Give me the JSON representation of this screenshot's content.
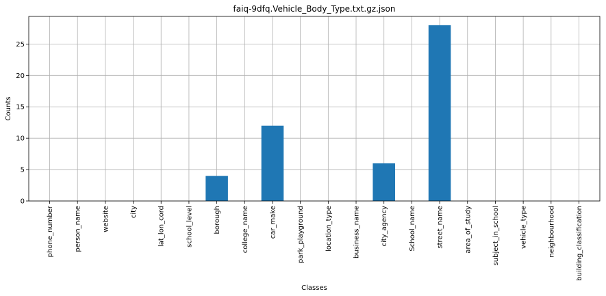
{
  "chart_data": {
    "type": "bar",
    "title": "faiq-9dfq.Vehicle_Body_Type.txt.gz.json",
    "xlabel": "Classes",
    "ylabel": "Counts",
    "categories": [
      "phone_number",
      "person_name",
      "website",
      "city",
      "lat_lon_cord",
      "school_level",
      "borough",
      "college_name",
      "car_make",
      "park_playground",
      "location_type",
      "business_name",
      "city_agency",
      "School_name",
      "street_name",
      "area_of_study",
      "subject_in_school",
      "vehicle_type",
      "neighbourhood",
      "building_classification"
    ],
    "values": [
      0,
      0,
      0,
      0,
      0,
      0,
      4,
      0,
      12,
      0,
      0,
      0,
      6,
      0,
      28,
      0,
      0,
      0,
      0,
      0
    ],
    "ylim": [
      0,
      29.4
    ],
    "yticks": [
      0,
      5,
      10,
      15,
      20,
      25
    ],
    "grid": true,
    "bar_color": "#1f77b4",
    "grid_color": "#b0b0b0"
  }
}
